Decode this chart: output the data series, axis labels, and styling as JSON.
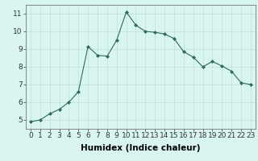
{
  "x": [
    0,
    1,
    2,
    3,
    4,
    5,
    6,
    7,
    8,
    9,
    10,
    11,
    12,
    13,
    14,
    15,
    16,
    17,
    18,
    19,
    20,
    21,
    22,
    23
  ],
  "y": [
    4.9,
    5.0,
    5.35,
    5.6,
    6.0,
    6.6,
    9.15,
    8.65,
    8.6,
    9.5,
    11.1,
    10.35,
    10.0,
    9.95,
    9.85,
    9.6,
    8.85,
    8.55,
    8.0,
    8.3,
    8.05,
    7.75,
    7.1,
    7.0
  ],
  "xlabel": "Humidex (Indice chaleur)",
  "ylim": [
    4.5,
    11.5
  ],
  "xlim": [
    -0.5,
    23.5
  ],
  "yticks": [
    5,
    6,
    7,
    8,
    9,
    10,
    11
  ],
  "xticks": [
    0,
    1,
    2,
    3,
    4,
    5,
    6,
    7,
    8,
    9,
    10,
    11,
    12,
    13,
    14,
    15,
    16,
    17,
    18,
    19,
    20,
    21,
    22,
    23
  ],
  "line_color": "#2e6b5e",
  "marker_color": "#2e6b5e",
  "bg_color": "#d8f5f0",
  "grid_color": "#c0ddd8",
  "tick_label_fontsize": 6.5,
  "xlabel_fontsize": 7.5
}
